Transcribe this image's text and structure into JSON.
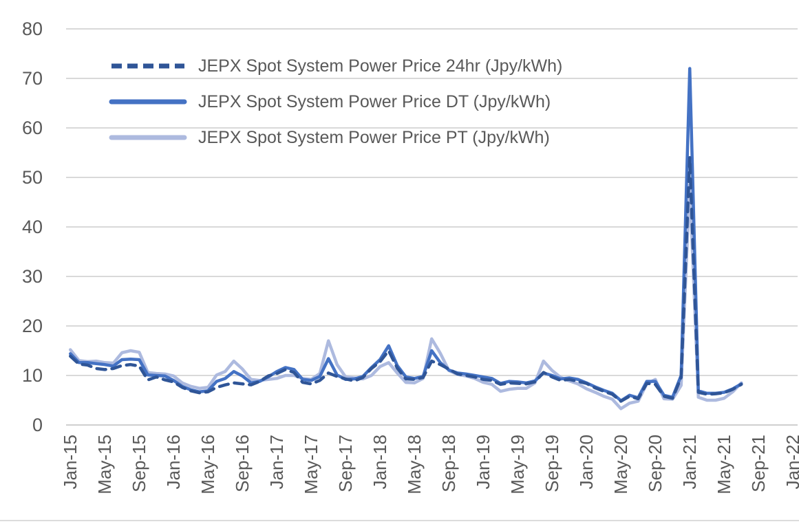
{
  "axis_color": "#595959",
  "gridline_color": "#D9D9D9",
  "chart_data": {
    "type": "line",
    "title": "",
    "xlabel": "",
    "ylabel": "",
    "grid": "horizontal",
    "legend_position": "top-left-inside",
    "ylim": [
      0,
      80
    ],
    "y_ticks": [
      0,
      10,
      20,
      30,
      40,
      50,
      60,
      70,
      80
    ],
    "x_tick_labels": [
      "Jan-15",
      "May-15",
      "Sep-15",
      "Jan-16",
      "May-16",
      "Sep-16",
      "Jan-17",
      "May-17",
      "Sep-17",
      "Jan-18",
      "May-18",
      "Sep-18",
      "Jan-19",
      "May-19",
      "Sep-19",
      "Jan-20",
      "May-20",
      "Sep-20",
      "Jan-21",
      "May-21",
      "Sep-21",
      "Jan-22"
    ],
    "x": [
      "Jan-15",
      "Feb-15",
      "Mar-15",
      "Apr-15",
      "May-15",
      "Jun-15",
      "Jul-15",
      "Aug-15",
      "Sep-15",
      "Oct-15",
      "Nov-15",
      "Dec-15",
      "Jan-16",
      "Feb-16",
      "Mar-16",
      "Apr-16",
      "May-16",
      "Jun-16",
      "Jul-16",
      "Aug-16",
      "Sep-16",
      "Oct-16",
      "Nov-16",
      "Dec-16",
      "Jan-17",
      "Feb-17",
      "Mar-17",
      "Apr-17",
      "May-17",
      "Jun-17",
      "Jul-17",
      "Aug-17",
      "Sep-17",
      "Oct-17",
      "Nov-17",
      "Dec-17",
      "Jan-18",
      "Feb-18",
      "Mar-18",
      "Apr-18",
      "May-18",
      "Jun-18",
      "Jul-18",
      "Aug-18",
      "Sep-18",
      "Oct-18",
      "Nov-18",
      "Dec-18",
      "Jan-19",
      "Feb-19",
      "Mar-19",
      "Apr-19",
      "May-19",
      "Jun-19",
      "Jul-19",
      "Aug-19",
      "Sep-19",
      "Oct-19",
      "Nov-19",
      "Dec-19",
      "Jan-20",
      "Feb-20",
      "Mar-20",
      "Apr-20",
      "May-20",
      "Jun-20",
      "Jul-20",
      "Aug-20",
      "Sep-20",
      "Oct-20",
      "Nov-20",
      "Dec-20",
      "Jan-21",
      "Feb-21",
      "Mar-21",
      "Apr-21",
      "May-21",
      "Jun-21",
      "Jul-21"
    ],
    "series": [
      {
        "id": "24hr",
        "name": "JEPX Spot System Power Price 24hr (Jpy/kWh)",
        "color": "#2F5597",
        "style": "dashed",
        "values": [
          13.9,
          12.3,
          12.1,
          11.4,
          11.2,
          11.4,
          12.0,
          12.2,
          11.9,
          9.1,
          9.7,
          9.1,
          8.7,
          7.6,
          6.9,
          6.5,
          6.7,
          7.6,
          8.1,
          8.5,
          8.3,
          8.1,
          8.8,
          9.9,
          10.4,
          11.2,
          10.6,
          8.6,
          8.3,
          9.0,
          10.5,
          9.8,
          9.3,
          8.9,
          9.6,
          11.4,
          12.8,
          15.0,
          11.5,
          9.3,
          9.2,
          9.6,
          12.9,
          12.2,
          11.3,
          10.3,
          10.0,
          9.7,
          9.2,
          9.0,
          8.2,
          8.5,
          8.4,
          8.3,
          8.7,
          10.6,
          9.7,
          9.0,
          9.2,
          8.8,
          8.4,
          7.5,
          6.8,
          6.2,
          4.8,
          5.8,
          5.3,
          8.4,
          8.2,
          5.8,
          5.4,
          9.6,
          54.0,
          6.6,
          6.2,
          6.3,
          6.5,
          7.2,
          8.2
        ]
      },
      {
        "id": "dt",
        "name": "JEPX Spot System Power Price DT (Jpy/kWh)",
        "color": "#4472C4",
        "style": "solid",
        "values": [
          14.4,
          12.6,
          12.6,
          12.4,
          12.2,
          11.9,
          13.2,
          13.3,
          13.2,
          10.1,
          10.0,
          9.9,
          9.0,
          7.8,
          7.1,
          6.7,
          6.9,
          8.8,
          9.4,
          10.8,
          9.9,
          8.5,
          8.8,
          9.7,
          10.8,
          11.6,
          11.2,
          9.2,
          9.0,
          9.8,
          13.4,
          10.1,
          9.2,
          9.3,
          9.8,
          11.6,
          13.2,
          16.0,
          12.0,
          9.7,
          9.4,
          9.8,
          15.0,
          12.6,
          11.1,
          10.5,
          10.3,
          10.0,
          9.7,
          9.4,
          8.4,
          8.8,
          8.7,
          8.5,
          8.9,
          10.5,
          10.0,
          9.3,
          9.5,
          9.2,
          8.5,
          7.7,
          7.0,
          6.4,
          4.9,
          6.0,
          5.5,
          8.8,
          8.8,
          6.0,
          5.6,
          10.0,
          72.0,
          6.9,
          6.4,
          6.4,
          6.6,
          7.3,
          8.3
        ]
      },
      {
        "id": "pt",
        "name": "JEPX Spot System Power Price PT (Jpy/kWh)",
        "color": "#ADBADF",
        "style": "solid",
        "values": [
          15.2,
          13.0,
          12.8,
          12.9,
          12.6,
          12.5,
          14.6,
          15.0,
          14.7,
          10.6,
          10.4,
          10.3,
          9.9,
          8.5,
          7.8,
          7.4,
          7.6,
          10.1,
          10.8,
          12.9,
          11.3,
          9.2,
          9.0,
          9.2,
          9.4,
          10.0,
          10.0,
          9.4,
          9.2,
          10.4,
          17.0,
          12.2,
          9.7,
          9.5,
          9.3,
          10.0,
          11.8,
          12.6,
          10.5,
          8.6,
          8.5,
          9.4,
          17.4,
          14.5,
          11.0,
          10.2,
          9.9,
          9.4,
          8.6,
          8.2,
          6.8,
          7.2,
          7.4,
          7.4,
          8.5,
          12.9,
          11.0,
          9.6,
          8.9,
          8.3,
          7.3,
          6.6,
          5.8,
          5.2,
          3.3,
          4.4,
          4.8,
          8.3,
          9.2,
          5.3,
          5.2,
          8.0,
          48.5,
          5.6,
          5.0,
          5.0,
          5.4,
          6.7,
          8.5
        ]
      }
    ]
  }
}
